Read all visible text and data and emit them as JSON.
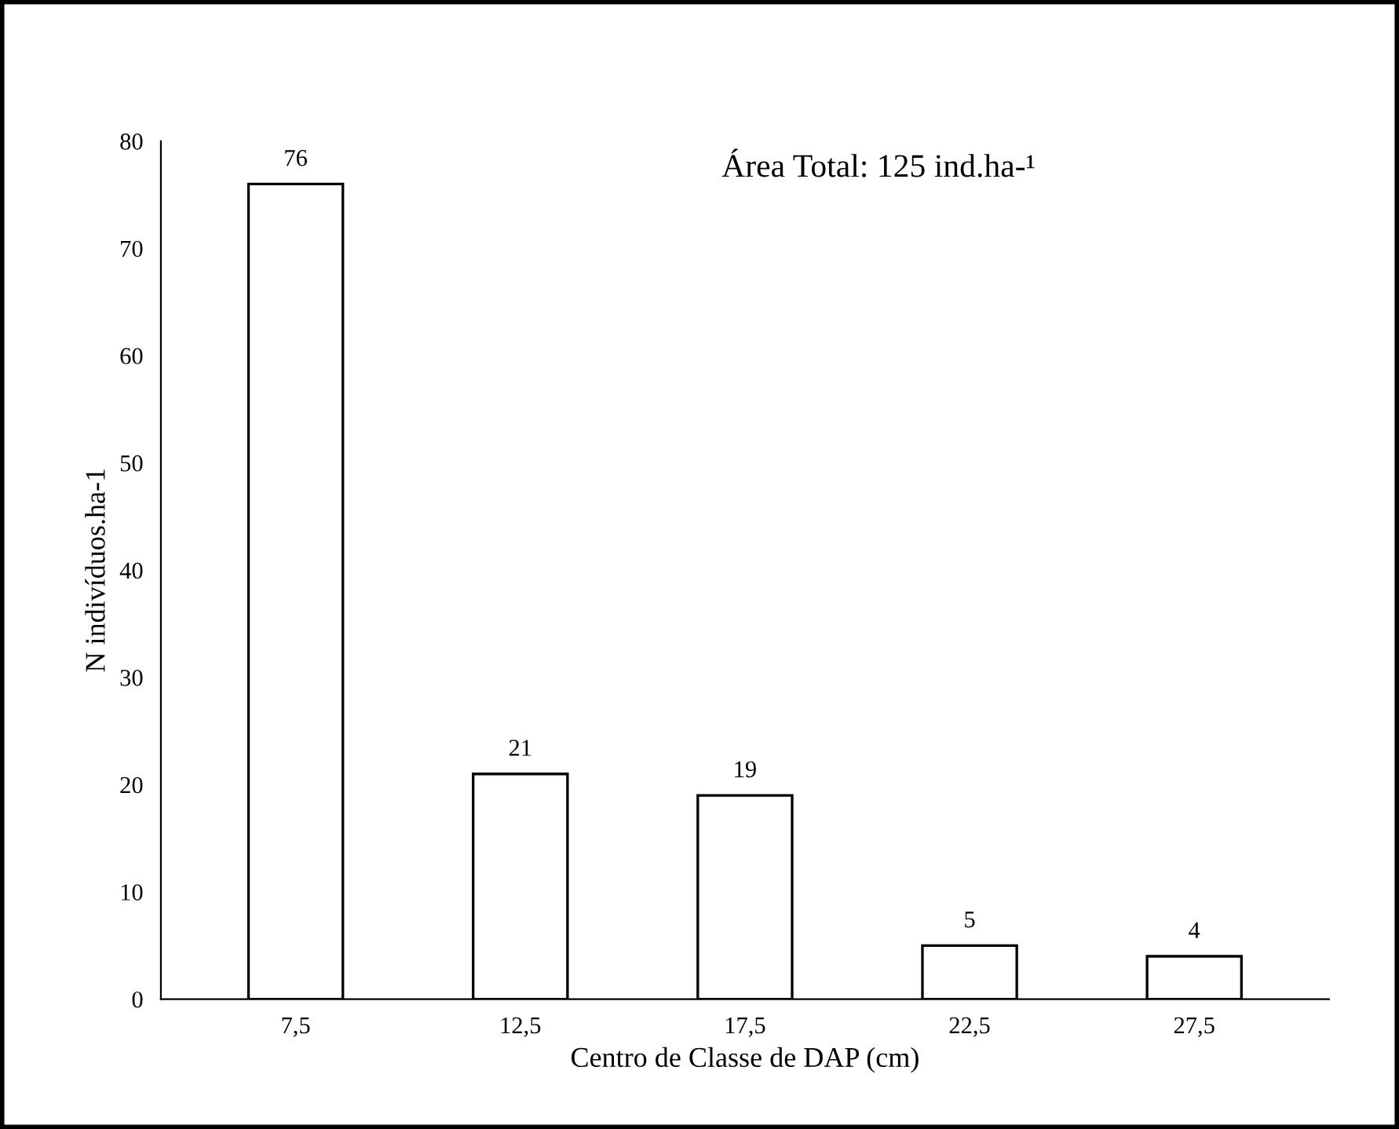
{
  "chart_data": {
    "type": "bar",
    "xlabel": "Centro de Classe de DAP (cm)",
    "ylabel": "N indivíduos.ha-1",
    "annotations": [
      "Área Total: 125 ind.ha-¹"
    ],
    "categories": [
      "7,5",
      "12,5",
      "17,5",
      "22,5",
      "27,5"
    ],
    "values": [
      76,
      21,
      19,
      5,
      4
    ],
    "color": "#ffffff",
    "data_labels": true,
    "ylim": [
      0,
      80
    ],
    "yticks": [
      0,
      10,
      20,
      30,
      40,
      50,
      60,
      70,
      80
    ],
    "grid": false,
    "legend": false
  }
}
